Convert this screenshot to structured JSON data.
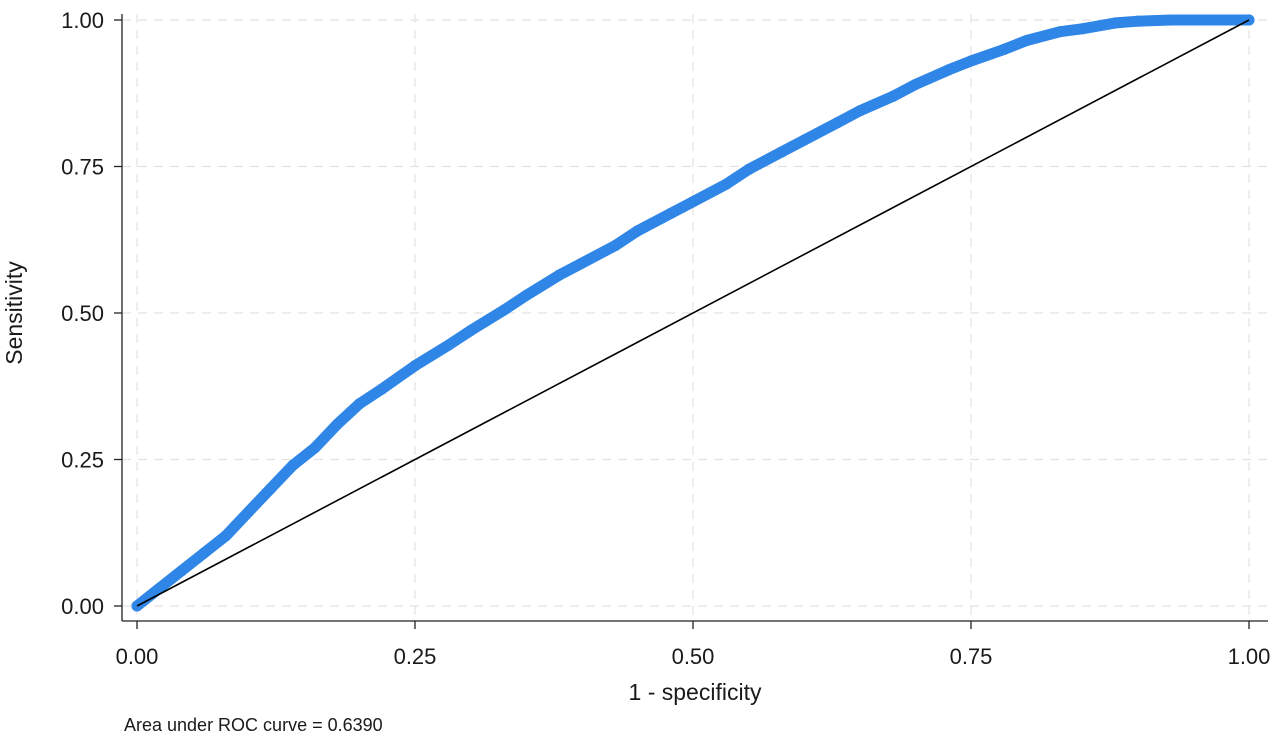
{
  "chart_data": {
    "type": "line",
    "xlabel": "1 - specificity",
    "ylabel": "Sensitivity",
    "note": "Area under ROC curve = 0.6390",
    "xlim": [
      0,
      1
    ],
    "ylim": [
      0,
      1
    ],
    "x_ticks": [
      "0.00",
      "0.25",
      "0.50",
      "0.75",
      "1.00"
    ],
    "y_ticks": [
      "0.00",
      "0.25",
      "0.50",
      "0.75",
      "1.00"
    ],
    "grid": true,
    "series": [
      {
        "role": "roc-curve",
        "color": "#2f86e6",
        "x": [
          0.0,
          0.02,
          0.04,
          0.06,
          0.08,
          0.1,
          0.12,
          0.14,
          0.16,
          0.18,
          0.2,
          0.22,
          0.25,
          0.28,
          0.3,
          0.33,
          0.35,
          0.38,
          0.4,
          0.43,
          0.45,
          0.48,
          0.5,
          0.53,
          0.55,
          0.58,
          0.6,
          0.63,
          0.65,
          0.68,
          0.7,
          0.73,
          0.75,
          0.78,
          0.8,
          0.83,
          0.85,
          0.88,
          0.9,
          0.93,
          0.95,
          0.98,
          1.0
        ],
        "y": [
          0.0,
          0.03,
          0.06,
          0.09,
          0.12,
          0.16,
          0.2,
          0.24,
          0.27,
          0.31,
          0.345,
          0.37,
          0.41,
          0.445,
          0.47,
          0.505,
          0.53,
          0.565,
          0.585,
          0.615,
          0.64,
          0.67,
          0.69,
          0.72,
          0.745,
          0.775,
          0.795,
          0.825,
          0.845,
          0.87,
          0.89,
          0.915,
          0.93,
          0.95,
          0.965,
          0.98,
          0.985,
          0.995,
          0.998,
          1.0,
          1.0,
          1.0,
          1.0
        ]
      },
      {
        "role": "reference-line",
        "color": "#000000",
        "x": [
          0,
          1
        ],
        "y": [
          0,
          1
        ]
      }
    ]
  }
}
